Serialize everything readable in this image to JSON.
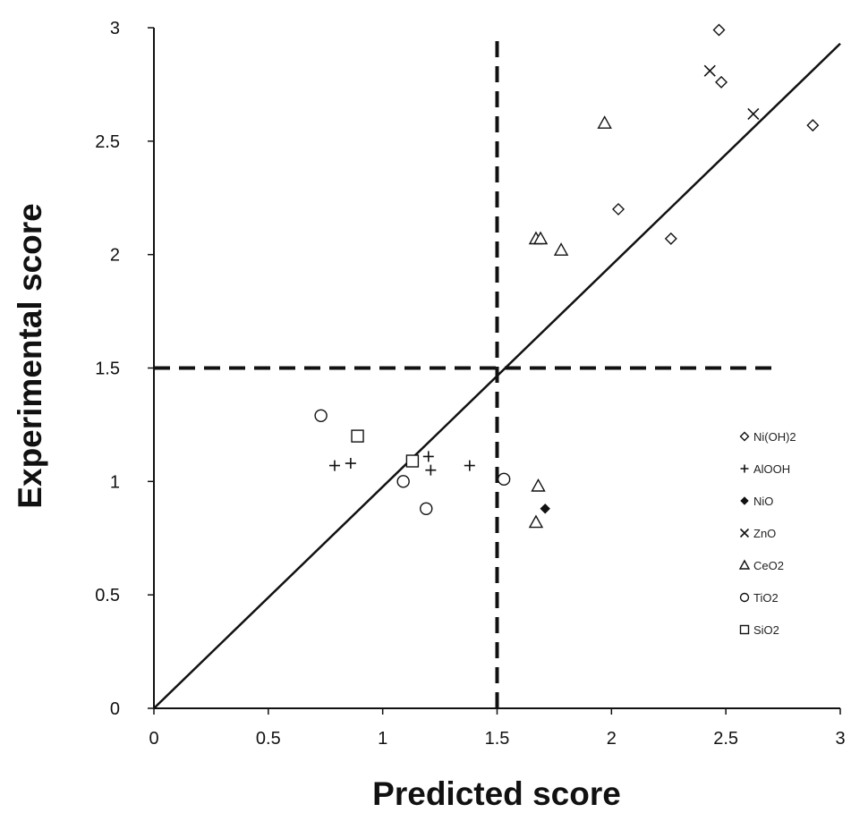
{
  "chart_data": {
    "type": "scatter",
    "xlabel": "Predicted score",
    "ylabel": "Experimental score",
    "xlim": [
      0,
      3
    ],
    "ylim": [
      0,
      3
    ],
    "xticks": [
      "0",
      "0.5",
      "1",
      "1.5",
      "2",
      "2.5",
      "3"
    ],
    "yticks": [
      "0",
      "0.5",
      "1",
      "1.5",
      "2",
      "2.5",
      "3"
    ],
    "grid": false,
    "legend_position": "right",
    "reference_lines": {
      "identity": true,
      "vertical_threshold_x": 1.5,
      "horizontal_threshold_y": 1.5
    },
    "series": [
      {
        "name": "Ni(OH)2",
        "marker": "diamond-open",
        "points": [
          [
            2.47,
            2.99
          ],
          [
            2.48,
            2.76
          ],
          [
            2.88,
            2.57
          ],
          [
            2.03,
            2.2
          ],
          [
            2.26,
            2.07
          ]
        ]
      },
      {
        "name": "AlOOH",
        "marker": "plus",
        "points": [
          [
            0.79,
            1.07
          ],
          [
            0.86,
            1.08
          ],
          [
            1.2,
            1.11
          ],
          [
            1.21,
            1.05
          ],
          [
            1.38,
            1.07
          ]
        ]
      },
      {
        "name": "NiO",
        "marker": "diamond-filled",
        "points": [
          [
            1.71,
            0.88
          ]
        ]
      },
      {
        "name": "ZnO",
        "marker": "cross",
        "points": [
          [
            2.43,
            2.81
          ],
          [
            2.62,
            2.62
          ]
        ]
      },
      {
        "name": "CeO2",
        "marker": "triangle-open",
        "points": [
          [
            1.97,
            2.58
          ],
          [
            1.67,
            2.07
          ],
          [
            1.69,
            2.07
          ],
          [
            1.78,
            2.02
          ],
          [
            1.68,
            0.98
          ],
          [
            1.67,
            0.82
          ]
        ]
      },
      {
        "name": "TiO2",
        "marker": "circle-open",
        "points": [
          [
            0.73,
            1.29
          ],
          [
            1.09,
            1.0
          ],
          [
            1.19,
            0.88
          ],
          [
            1.53,
            1.01
          ]
        ]
      },
      {
        "name": "SiO2",
        "marker": "square-open",
        "points": [
          [
            0.89,
            1.2
          ],
          [
            1.13,
            1.09
          ]
        ]
      }
    ]
  }
}
